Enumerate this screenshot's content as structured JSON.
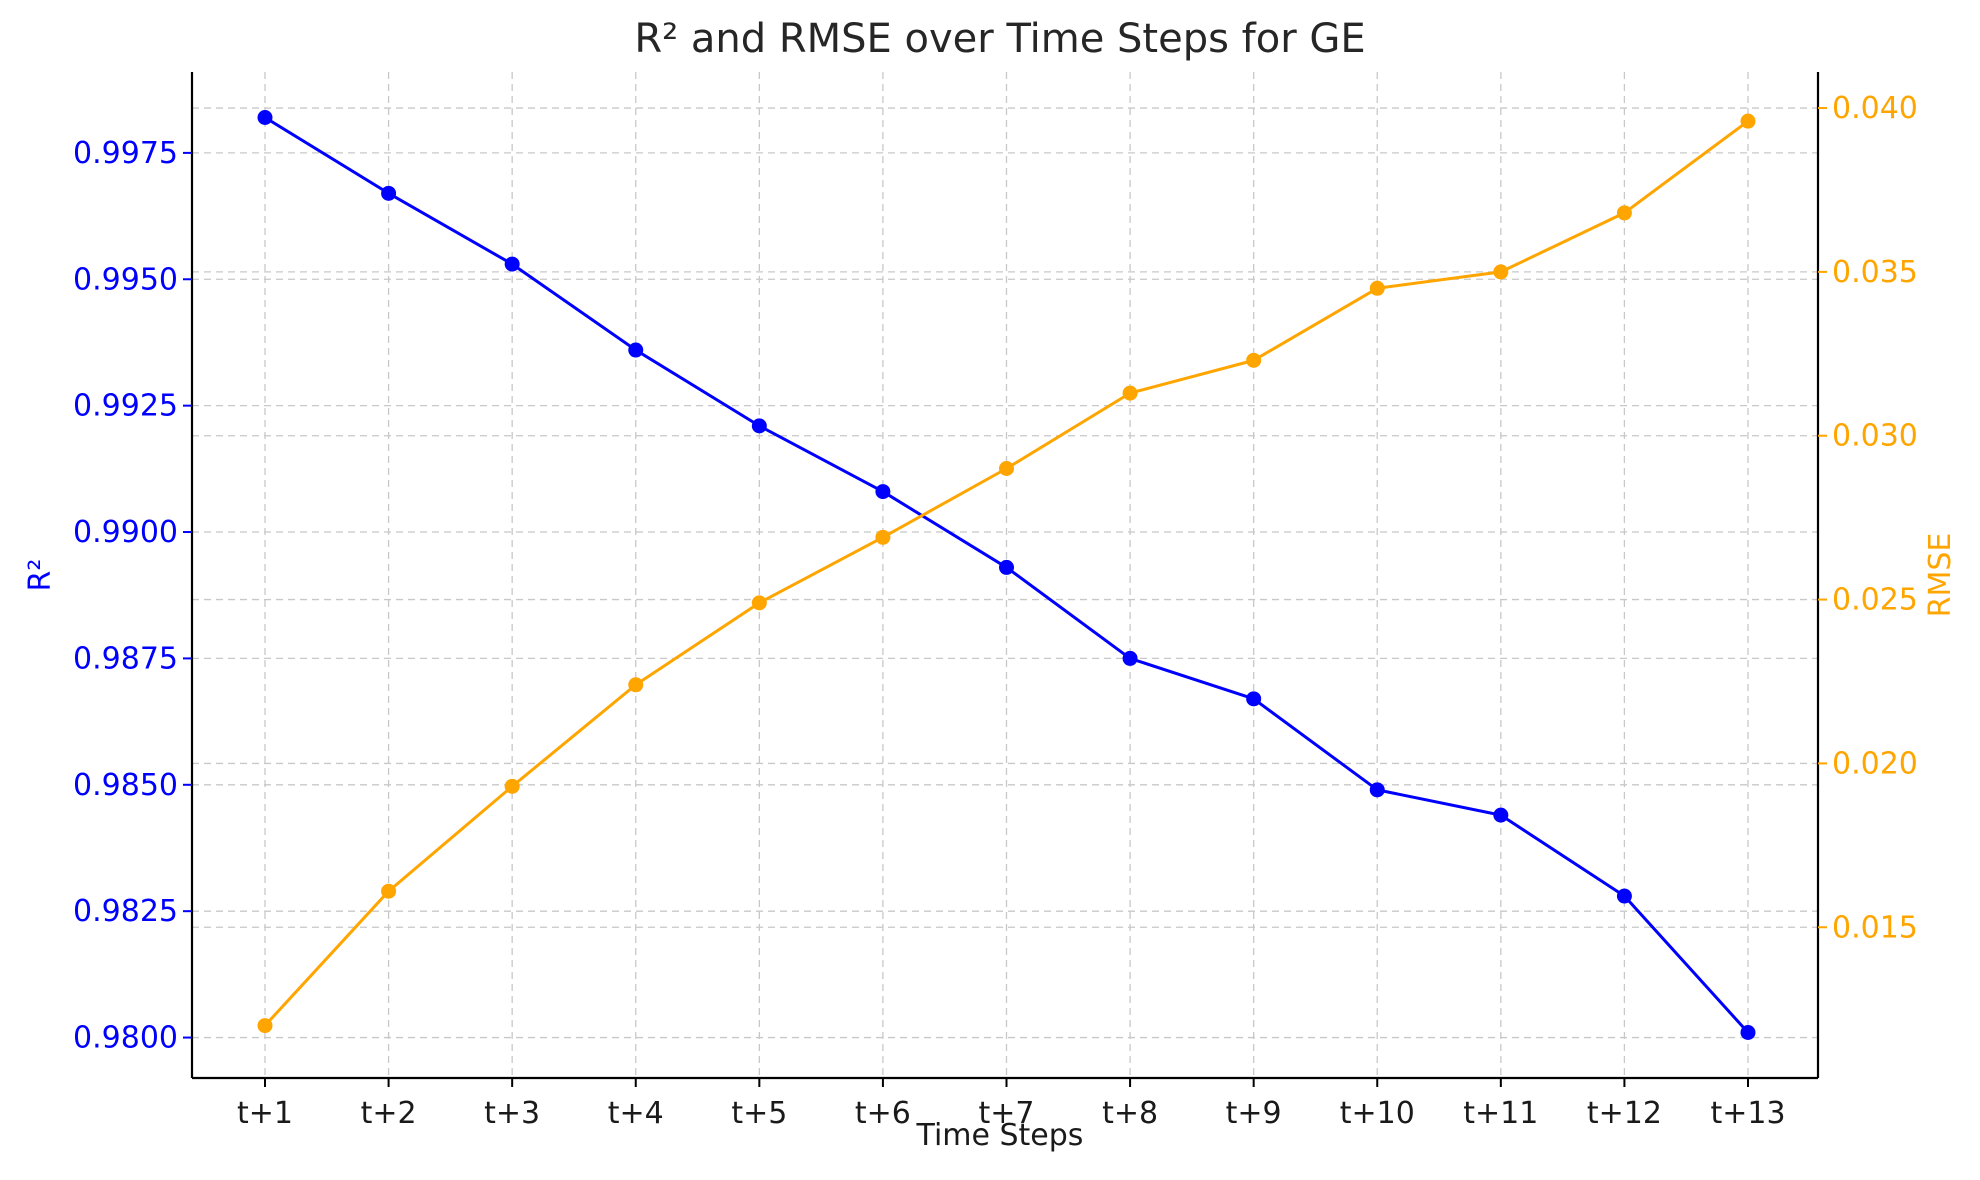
{
  "chart_data": {
    "type": "line",
    "title": "R² and RMSE over Time Steps for GE",
    "xlabel": "Time Steps",
    "categories": [
      "t+1",
      "t+2",
      "t+3",
      "t+4",
      "t+5",
      "t+6",
      "t+7",
      "t+8",
      "t+9",
      "t+10",
      "t+11",
      "t+12",
      "t+13"
    ],
    "y_left": {
      "label": "R²",
      "color": "#0000ff",
      "range": [
        0.9792,
        0.9991
      ],
      "ticks": [
        0.98,
        0.9825,
        0.985,
        0.9875,
        0.99,
        0.9925,
        0.995,
        0.9975
      ],
      "tick_labels": [
        "0.9800",
        "0.9825",
        "0.9850",
        "0.9875",
        "0.9900",
        "0.9925",
        "0.9950",
        "0.9975"
      ]
    },
    "y_right": {
      "label": "RMSE",
      "color": "#ffa500",
      "range": [
        0.0104,
        0.0411
      ],
      "ticks": [
        0.015,
        0.02,
        0.025,
        0.03,
        0.035,
        0.04
      ],
      "tick_labels": [
        "0.015",
        "0.020",
        "0.025",
        "0.030",
        "0.035",
        "0.040"
      ]
    },
    "series": [
      {
        "axis": "left",
        "color": "#0000ff",
        "marker": "circle",
        "values": [
          0.9982,
          0.9967,
          0.9953,
          0.9936,
          0.9921,
          0.9908,
          0.9893,
          0.9875,
          0.9867,
          0.9849,
          0.9844,
          0.9828,
          0.9801
        ]
      },
      {
        "axis": "right",
        "color": "#ffa500",
        "marker": "circle",
        "values": [
          0.012,
          0.0161,
          0.0193,
          0.0224,
          0.0249,
          0.0269,
          0.029,
          0.0313,
          0.0323,
          0.0345,
          0.035,
          0.0368,
          0.0396
        ]
      }
    ],
    "grid": true,
    "legend": "none"
  }
}
